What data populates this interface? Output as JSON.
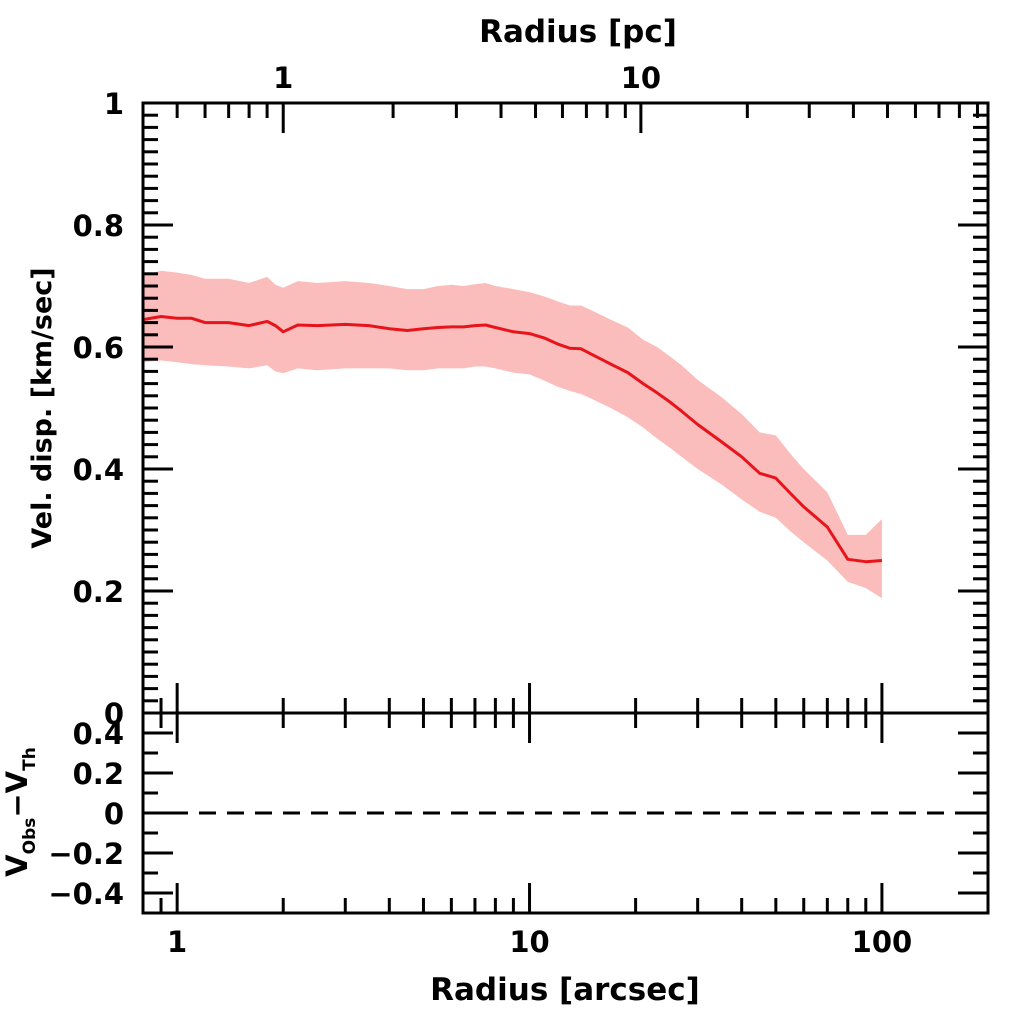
{
  "colors": {
    "line": "#e8141b",
    "band": "#fbbcbc",
    "axes": "#000000",
    "zero_line": "#000000"
  },
  "chart_data": [
    {
      "panel": "main",
      "type": "line",
      "xscale": "log",
      "xlabel": "Radius [arcsec]",
      "ylabel": "Vel. disp. [km/sec]",
      "top_xlabel": "Radius [pc]",
      "xlim": [
        0.8,
        200
      ],
      "ylim": [
        0,
        1
      ],
      "yticks": [
        "0",
        "0.2",
        "0.4",
        "0.6",
        "0.8",
        "1"
      ],
      "top_ticks": [
        "1",
        "10"
      ],
      "top_tick_arcsec": [
        2.0,
        20.7
      ],
      "top_minor_ticks_arcsec": [
        0.6,
        0.8,
        1.0,
        1.2,
        1.4,
        1.6,
        1.8,
        4.1,
        6.2,
        8.3,
        10.4,
        12.4,
        14.5,
        16.6,
        18.7,
        41.5,
        62.2,
        83.0,
        103.7,
        124.5,
        145.2,
        165.9,
        186.7
      ],
      "grid": false,
      "series": [
        {
          "x": [
            0.8,
            0.9,
            1.0,
            1.1,
            1.2,
            1.4,
            1.6,
            1.8,
            1.9,
            2.0,
            2.2,
            2.5,
            3.0,
            3.5,
            4.0,
            4.5,
            5.0,
            5.5,
            6.0,
            6.5,
            7.0,
            7.5,
            8.0,
            9.0,
            10.0,
            11.0,
            12.0,
            13.0,
            14.0,
            15.0,
            17.0,
            19.0,
            21.0,
            23.0,
            25.0,
            27.0,
            30.0,
            35.0,
            40.0,
            45.0,
            50.0,
            55.0,
            60.0,
            70.0,
            80.0,
            90.0,
            100.0
          ],
          "y": [
            0.645,
            0.65,
            0.647,
            0.647,
            0.64,
            0.64,
            0.635,
            0.642,
            0.635,
            0.625,
            0.636,
            0.635,
            0.637,
            0.635,
            0.63,
            0.627,
            0.63,
            0.632,
            0.633,
            0.633,
            0.635,
            0.636,
            0.632,
            0.625,
            0.622,
            0.615,
            0.605,
            0.598,
            0.597,
            0.588,
            0.572,
            0.558,
            0.54,
            0.525,
            0.51,
            0.495,
            0.473,
            0.445,
            0.42,
            0.393,
            0.385,
            0.36,
            0.338,
            0.305,
            0.252,
            0.248,
            0.25
          ],
          "y_low": [
            0.575,
            0.578,
            0.575,
            0.572,
            0.57,
            0.568,
            0.565,
            0.57,
            0.56,
            0.557,
            0.565,
            0.562,
            0.565,
            0.565,
            0.565,
            0.562,
            0.562,
            0.565,
            0.565,
            0.565,
            0.568,
            0.568,
            0.565,
            0.558,
            0.555,
            0.545,
            0.535,
            0.528,
            0.523,
            0.515,
            0.5,
            0.485,
            0.468,
            0.45,
            0.435,
            0.42,
            0.4,
            0.375,
            0.35,
            0.33,
            0.32,
            0.298,
            0.28,
            0.25,
            0.215,
            0.205,
            0.188
          ],
          "y_high": [
            0.718,
            0.725,
            0.722,
            0.718,
            0.712,
            0.712,
            0.705,
            0.715,
            0.702,
            0.697,
            0.708,
            0.705,
            0.708,
            0.705,
            0.7,
            0.695,
            0.695,
            0.7,
            0.702,
            0.7,
            0.703,
            0.705,
            0.7,
            0.695,
            0.69,
            0.683,
            0.675,
            0.668,
            0.668,
            0.66,
            0.645,
            0.632,
            0.612,
            0.6,
            0.585,
            0.57,
            0.546,
            0.518,
            0.49,
            0.46,
            0.455,
            0.425,
            0.4,
            0.362,
            0.292,
            0.292,
            0.318
          ]
        }
      ]
    },
    {
      "panel": "residual",
      "type": "line",
      "xscale": "log",
      "xlabel": "Radius [arcsec]",
      "ylabel_main": "V",
      "ylabel_sub1": "Obs",
      "ylabel_mid": "−V",
      "ylabel_sub2": "Th",
      "xlim": [
        0.8,
        200
      ],
      "ylim": [
        -0.5,
        0.5
      ],
      "xticks": [
        "1",
        "10",
        "100"
      ],
      "yticks": [
        "−0.4",
        "−0.2",
        "0",
        "0.2",
        "0.4"
      ],
      "zero_line": "dashed",
      "grid": false
    }
  ]
}
